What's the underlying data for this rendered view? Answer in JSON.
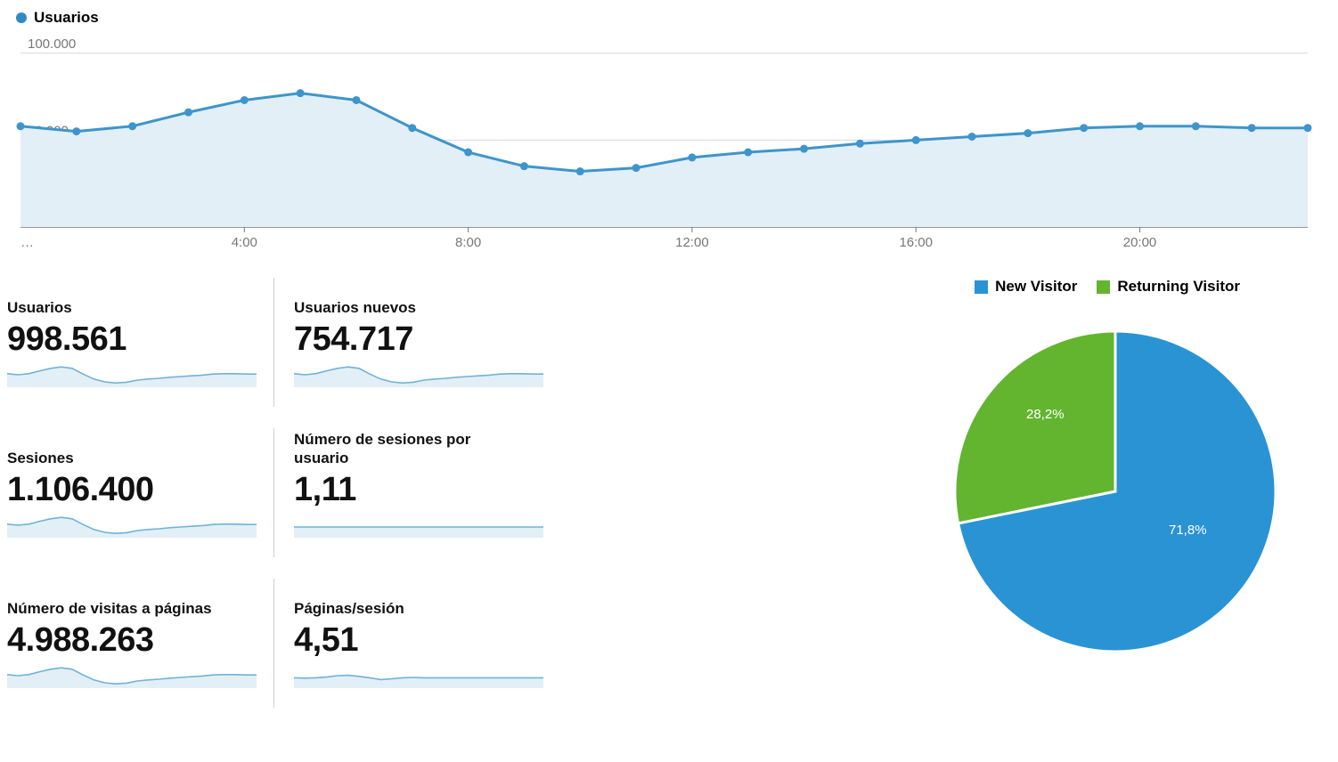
{
  "main_chart": {
    "legend_label": "Usuarios",
    "legend_color": "#2f89c5",
    "type": "area-line",
    "y_ticks": [
      50000,
      100000
    ],
    "y_tick_labels": [
      "50.000",
      "100.000"
    ],
    "ylim": [
      0,
      105000
    ],
    "x_ticks": [
      4,
      8,
      12,
      16,
      20
    ],
    "x_tick_labels": [
      "4:00",
      "8:00",
      "12:00",
      "16:00",
      "20:00"
    ],
    "x_ellipsis": "…",
    "x_count": 24,
    "values": [
      58000,
      55000,
      58000,
      66000,
      73000,
      77000,
      73000,
      57000,
      43000,
      35000,
      32000,
      34000,
      40000,
      43000,
      45000,
      48000,
      50000,
      52000,
      54000,
      57000,
      58000,
      58000,
      57000,
      57000
    ],
    "line_color": "#3d95cc",
    "line_width": 3,
    "marker_radius": 4.5,
    "fill_color": "#e3eff6",
    "grid_color": "#d7d7d7",
    "axis_color": "#777777",
    "tick_font_size": 15,
    "tick_color": "#777777",
    "background_color": "#ffffff"
  },
  "metrics": [
    {
      "label": "Usuarios",
      "value": "998.561",
      "spark": [
        58,
        55,
        58,
        66,
        73,
        77,
        73,
        57,
        43,
        35,
        32,
        34,
        40,
        43,
        45,
        48,
        50,
        52,
        54,
        57,
        58,
        58,
        57,
        57
      ]
    },
    {
      "label": "Usuarios nuevos",
      "value": "754.717",
      "spark": [
        58,
        55,
        58,
        66,
        73,
        77,
        73,
        57,
        43,
        35,
        32,
        34,
        40,
        43,
        45,
        48,
        50,
        52,
        54,
        57,
        58,
        58,
        57,
        57
      ]
    },
    {
      "label": "Sesiones",
      "value": "1.106.400",
      "spark": [
        58,
        55,
        58,
        66,
        73,
        77,
        73,
        57,
        43,
        35,
        32,
        34,
        40,
        43,
        45,
        48,
        50,
        52,
        54,
        57,
        58,
        58,
        57,
        57
      ]
    },
    {
      "label": "Número de sesiones por usuario",
      "value": "1,11",
      "spark": [
        50,
        50,
        50,
        50,
        50,
        50,
        50,
        50,
        50,
        50,
        50,
        50,
        50,
        50,
        50,
        50,
        50,
        50,
        50,
        50,
        50,
        50,
        50,
        50
      ]
    },
    {
      "label": "Número de visitas a páginas",
      "value": "4.988.263",
      "spark": [
        58,
        55,
        58,
        66,
        73,
        77,
        73,
        57,
        43,
        35,
        32,
        34,
        40,
        43,
        45,
        48,
        50,
        52,
        54,
        57,
        58,
        58,
        57,
        57
      ]
    },
    {
      "label": "Páginas/sesión",
      "value": "4,51",
      "spark": [
        49,
        48,
        49,
        51,
        55,
        56,
        53,
        49,
        44,
        46,
        49,
        50,
        49,
        49,
        49,
        49,
        49,
        49,
        49,
        49,
        49,
        49,
        49,
        49
      ]
    }
  ],
  "spark_style": {
    "line_color": "#6fb2da",
    "fill_color": "#e3eff6",
    "line_width": 1.6,
    "ylim": [
      20,
      90
    ]
  },
  "pie": {
    "type": "pie",
    "legend": [
      {
        "label": "New Visitor",
        "color": "#2a93d4"
      },
      {
        "label": "Returning Visitor",
        "color": "#63b42f"
      }
    ],
    "slices": [
      {
        "pct": 71.8,
        "label": "71,8%",
        "color": "#2a93d4"
      },
      {
        "pct": 28.2,
        "label": "28,2%",
        "color": "#63b42f"
      }
    ],
    "start_angle": -90,
    "gap_color": "#ffffff",
    "gap_width": 3
  }
}
